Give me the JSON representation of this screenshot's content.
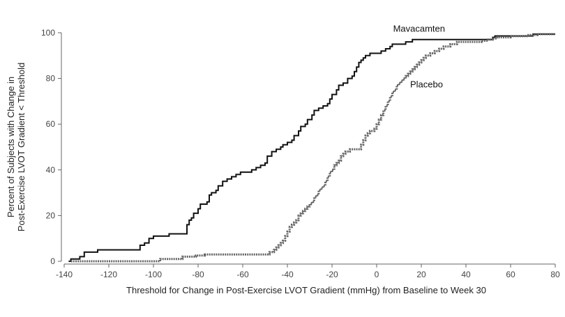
{
  "chart_data": {
    "type": "line",
    "step": true,
    "xlabel": "Threshold for Change in Post-Exercise LVOT Gradient (mmHg) from Baseline to Week 30",
    "ylabel": [
      "Percent of Subjects with Change in",
      "Post-Exercise LVOT Gradient < Threshold"
    ],
    "xlim": [
      -140,
      80
    ],
    "ylim": [
      0,
      100
    ],
    "x_ticks": [
      -140,
      -120,
      -100,
      -80,
      -60,
      -40,
      -20,
      0,
      20,
      40,
      60,
      80
    ],
    "y_ticks": [
      0,
      20,
      40,
      60,
      80,
      100
    ],
    "grid": false,
    "series": [
      {
        "name": "Mavacamten",
        "style": "solid",
        "color": "#111111",
        "points": [
          [
            -138,
            0
          ],
          [
            -137,
            1
          ],
          [
            -133,
            2
          ],
          [
            -131,
            4
          ],
          [
            -125,
            5
          ],
          [
            -108,
            5
          ],
          [
            -106,
            7
          ],
          [
            -104,
            8
          ],
          [
            -102,
            10
          ],
          [
            -100,
            11
          ],
          [
            -93,
            12
          ],
          [
            -86,
            12
          ],
          [
            -85,
            16
          ],
          [
            -84,
            18
          ],
          [
            -83,
            19
          ],
          [
            -82,
            21
          ],
          [
            -80,
            23
          ],
          [
            -79,
            25
          ],
          [
            -76,
            26
          ],
          [
            -75,
            29
          ],
          [
            -74,
            30
          ],
          [
            -72,
            31
          ],
          [
            -71,
            33
          ],
          [
            -69,
            35
          ],
          [
            -67,
            36
          ],
          [
            -65,
            37
          ],
          [
            -63,
            38
          ],
          [
            -61,
            39
          ],
          [
            -56,
            40
          ],
          [
            -54,
            41
          ],
          [
            -52,
            42
          ],
          [
            -50,
            43
          ],
          [
            -49,
            46
          ],
          [
            -47,
            48
          ],
          [
            -45,
            49
          ],
          [
            -43,
            50
          ],
          [
            -42,
            51
          ],
          [
            -40,
            52
          ],
          [
            -38,
            53
          ],
          [
            -37,
            55
          ],
          [
            -35,
            57
          ],
          [
            -34,
            59
          ],
          [
            -32,
            60
          ],
          [
            -31,
            62
          ],
          [
            -29,
            64
          ],
          [
            -28,
            66
          ],
          [
            -26,
            67
          ],
          [
            -24,
            68
          ],
          [
            -22,
            69
          ],
          [
            -21,
            71
          ],
          [
            -20,
            73
          ],
          [
            -18,
            75
          ],
          [
            -17,
            77
          ],
          [
            -15,
            78
          ],
          [
            -13,
            80
          ],
          [
            -11,
            81
          ],
          [
            -10,
            83
          ],
          [
            -9,
            85
          ],
          [
            -8,
            87
          ],
          [
            -7,
            88
          ],
          [
            -6,
            89
          ],
          [
            -5,
            90
          ],
          [
            -3,
            91
          ],
          [
            2,
            92
          ],
          [
            4,
            93
          ],
          [
            6,
            94
          ],
          [
            7,
            95
          ],
          [
            13,
            96
          ],
          [
            16,
            97
          ],
          [
            52,
            98
          ],
          [
            53,
            98.6
          ],
          [
            58,
            98.6
          ],
          [
            70,
            99.4
          ],
          [
            80,
            99.4
          ]
        ]
      },
      {
        "name": "Placebo",
        "style": "dotted",
        "color": "#666666",
        "points": [
          [
            -137,
            0
          ],
          [
            -98,
            0
          ],
          [
            -97,
            1
          ],
          [
            -88,
            1
          ],
          [
            -87,
            2
          ],
          [
            -82,
            2
          ],
          [
            -81,
            2.5
          ],
          [
            -77,
            3
          ],
          [
            -50,
            3
          ],
          [
            -48,
            4
          ],
          [
            -46,
            5
          ],
          [
            -45,
            6
          ],
          [
            -44,
            7
          ],
          [
            -43,
            8
          ],
          [
            -42,
            9
          ],
          [
            -41,
            11
          ],
          [
            -40,
            13
          ],
          [
            -39,
            15
          ],
          [
            -38,
            16
          ],
          [
            -37,
            17
          ],
          [
            -36,
            18
          ],
          [
            -35,
            20
          ],
          [
            -34,
            21
          ],
          [
            -33,
            22
          ],
          [
            -32,
            23
          ],
          [
            -31,
            24
          ],
          [
            -30,
            25
          ],
          [
            -29,
            26
          ],
          [
            -28,
            28
          ],
          [
            -27,
            29
          ],
          [
            -26,
            31
          ],
          [
            -25,
            32
          ],
          [
            -24,
            33
          ],
          [
            -23,
            35
          ],
          [
            -22,
            37
          ],
          [
            -21,
            39
          ],
          [
            -20,
            40
          ],
          [
            -19,
            42
          ],
          [
            -18,
            43
          ],
          [
            -17,
            44
          ],
          [
            -16,
            46
          ],
          [
            -15,
            47
          ],
          [
            -14,
            48
          ],
          [
            -12,
            49
          ],
          [
            -8,
            49
          ],
          [
            -7,
            51
          ],
          [
            -6,
            53
          ],
          [
            -5,
            55
          ],
          [
            -4,
            56
          ],
          [
            -3,
            57
          ],
          [
            -1,
            58
          ],
          [
            0,
            60
          ],
          [
            1,
            62
          ],
          [
            2,
            64
          ],
          [
            3,
            66
          ],
          [
            4,
            68
          ],
          [
            5,
            70
          ],
          [
            6,
            72
          ],
          [
            7,
            74
          ],
          [
            8,
            75
          ],
          [
            9,
            77
          ],
          [
            10,
            78
          ],
          [
            11,
            79
          ],
          [
            12,
            80
          ],
          [
            13,
            81
          ],
          [
            14,
            82
          ],
          [
            15,
            83
          ],
          [
            16,
            84
          ],
          [
            17,
            85
          ],
          [
            18,
            86
          ],
          [
            19,
            87
          ],
          [
            20,
            88
          ],
          [
            21,
            89
          ],
          [
            22,
            90
          ],
          [
            24,
            91
          ],
          [
            26,
            92
          ],
          [
            28,
            93
          ],
          [
            30,
            94
          ],
          [
            33,
            95
          ],
          [
            36,
            96
          ],
          [
            47,
            96.5
          ],
          [
            50,
            97
          ],
          [
            52,
            97.5
          ],
          [
            54,
            98
          ],
          [
            60,
            98.5
          ],
          [
            68,
            99
          ],
          [
            72,
            99.4
          ],
          [
            80,
            99.4
          ]
        ]
      }
    ],
    "annotations": [
      {
        "text": "Mavacamten",
        "x": 19,
        "y": 100.5,
        "anchor": "middle"
      },
      {
        "text": "Placebo",
        "x": 15,
        "y": 76,
        "anchor": "start"
      }
    ]
  }
}
